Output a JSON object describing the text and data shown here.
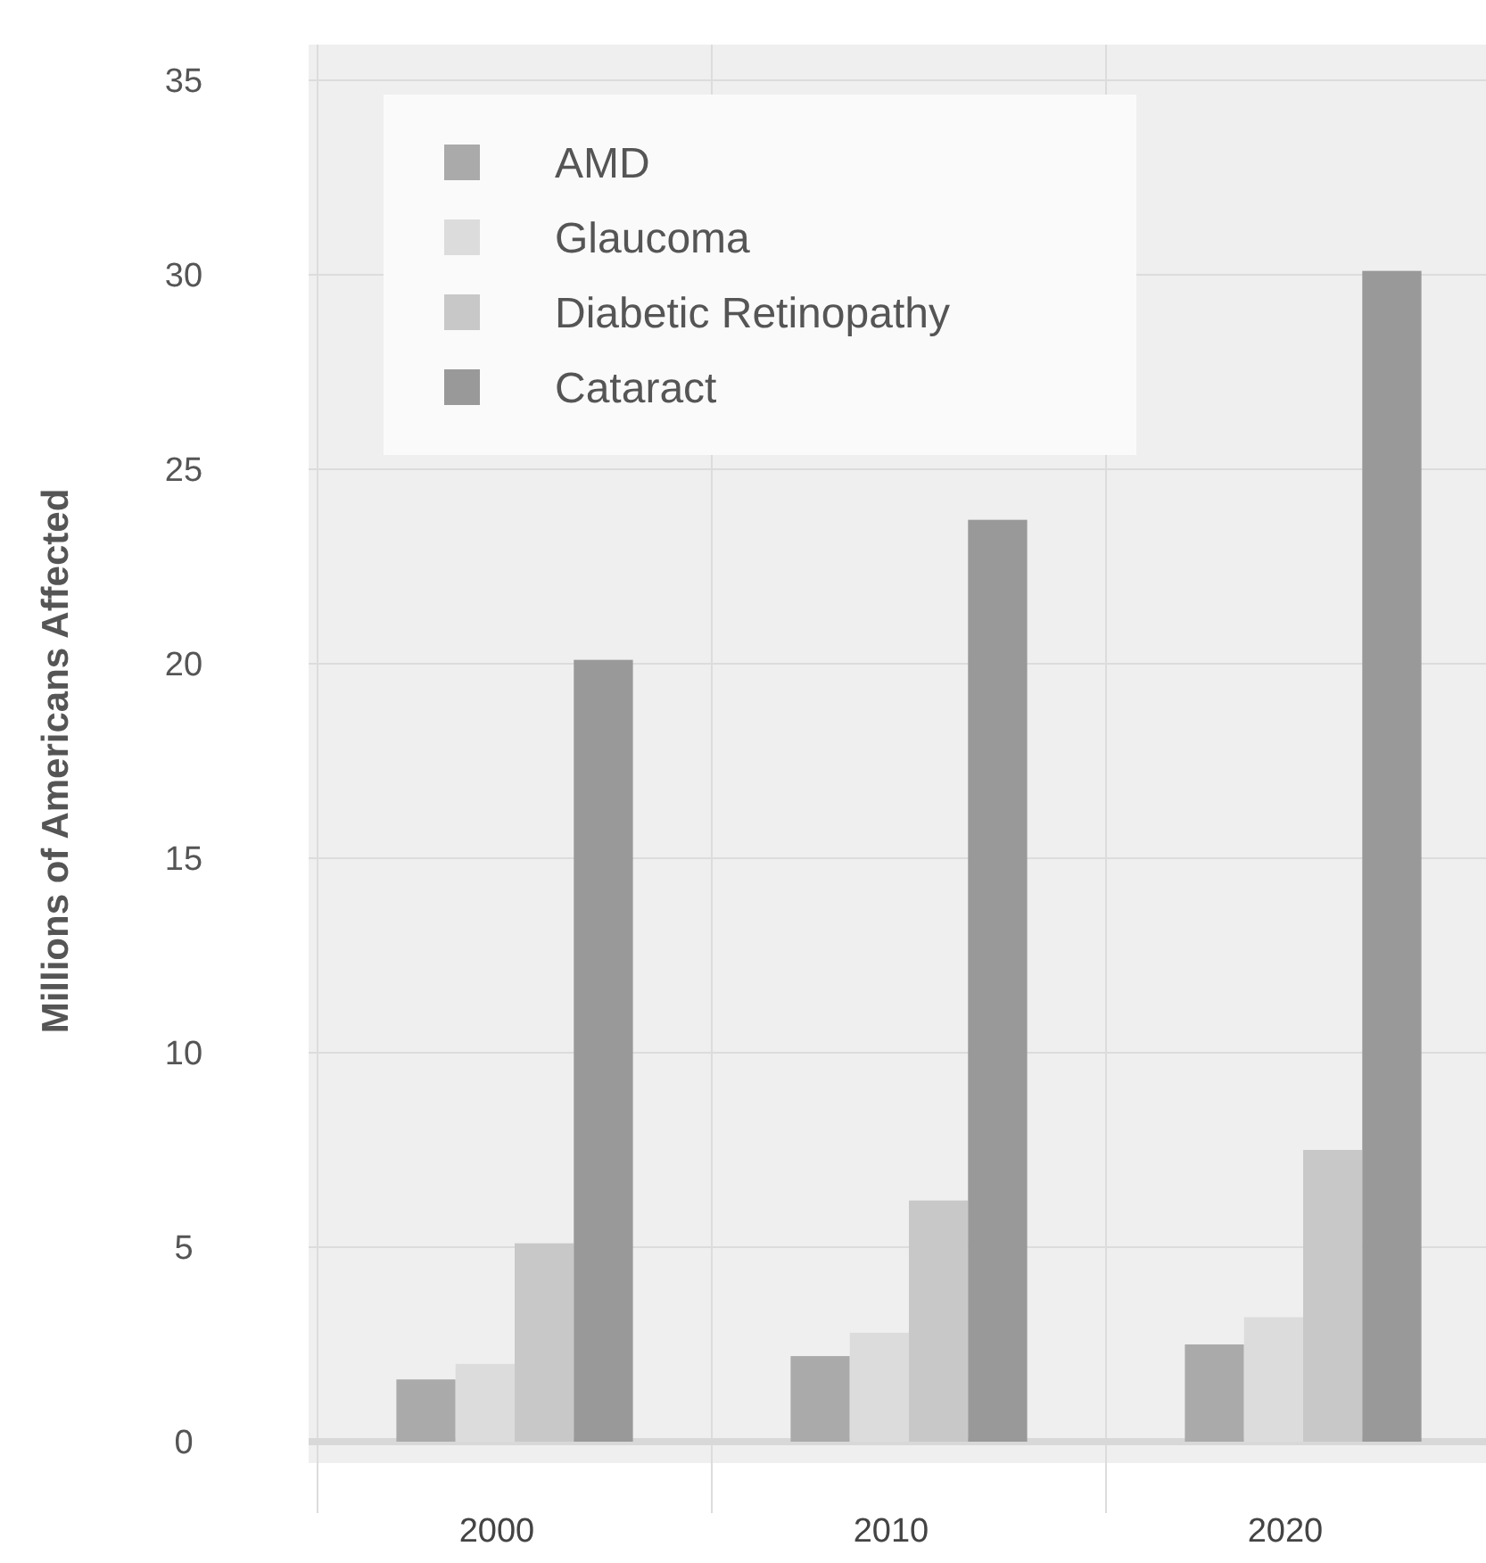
{
  "chart_data": {
    "type": "bar",
    "ylabel": "Millions of Americans Affected",
    "categories": [
      "2000",
      "2010",
      "2020"
    ],
    "series": [
      {
        "name": "AMD",
        "color": "#aaaaaa",
        "values": [
          1.6,
          2.2,
          2.5
        ]
      },
      {
        "name": "Glaucoma",
        "color": "#dcdcdc",
        "values": [
          2.0,
          2.8,
          3.2
        ]
      },
      {
        "name": "Diabetic Retinopathy",
        "color": "#c8c8c8",
        "values": [
          5.1,
          6.2,
          7.5
        ]
      },
      {
        "name": "Cataract",
        "color": "#999999",
        "values": [
          20.1,
          23.7,
          30.1
        ]
      }
    ],
    "ylim": [
      0,
      35
    ],
    "yticks": [
      0,
      5,
      10,
      15,
      20,
      25,
      30,
      35
    ],
    "grid": true,
    "legend": "top left"
  }
}
